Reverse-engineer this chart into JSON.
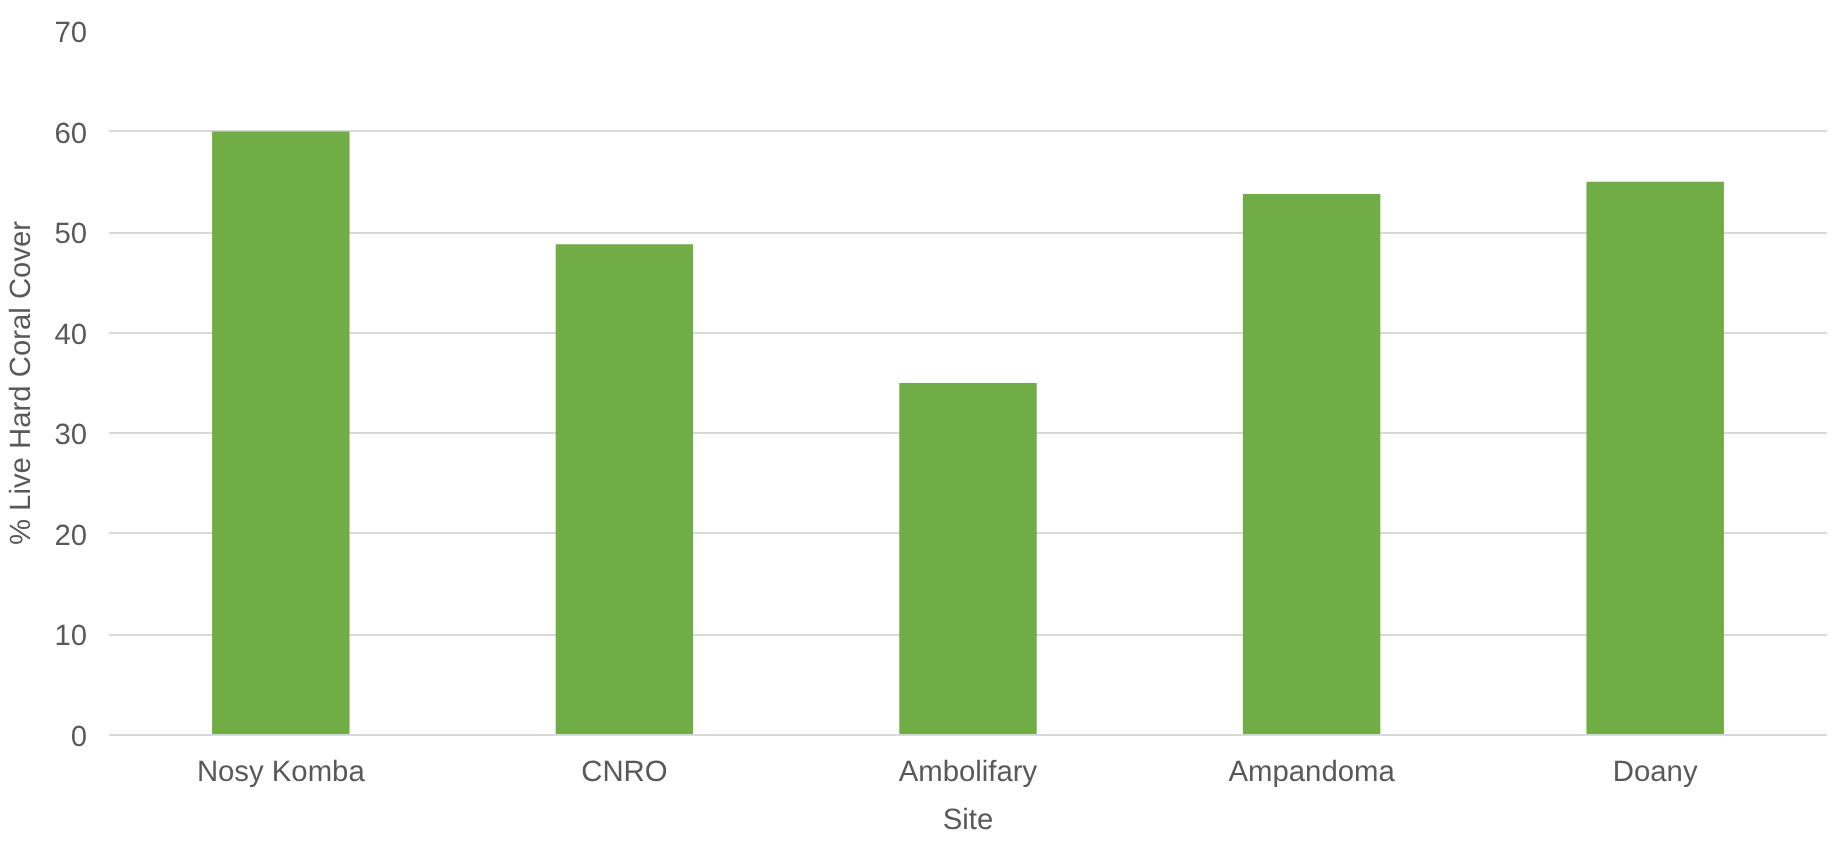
{
  "chart_data": {
    "type": "bar",
    "xlabel": "Site",
    "ylabel": "% Live Hard Coral Cover",
    "categories": [
      "Nosy Komba",
      "CNRO",
      "Ambolifary",
      "Ampandoma",
      "Doany"
    ],
    "values": [
      60,
      48.8,
      35,
      53.8,
      55
    ],
    "color": "#70ad47",
    "ylim": [
      0,
      70
    ],
    "yticks": [
      0,
      10,
      20,
      30,
      40,
      50,
      60,
      70
    ],
    "grid": "y"
  }
}
